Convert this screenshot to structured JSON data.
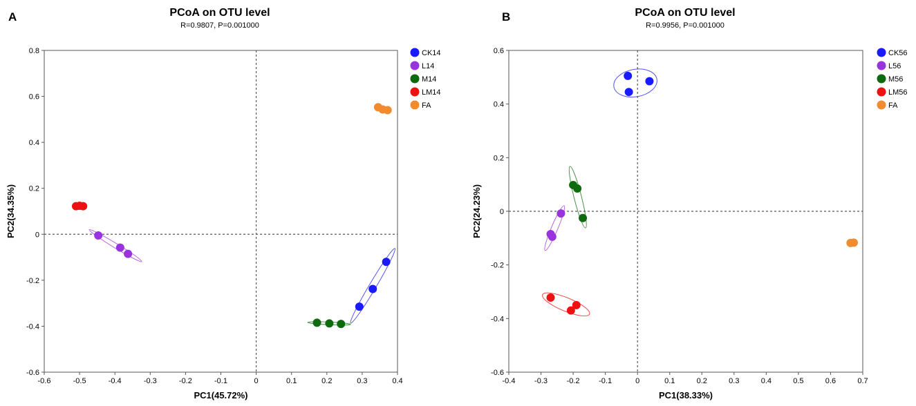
{
  "chart_data": [
    {
      "type": "scatter",
      "panel": "A",
      "title": "PCoA on OTU level",
      "subtitle": "R=0.9807, P=0.001000",
      "xlabel": "PC1(45.72%)",
      "ylabel": "PC2(34.35%)",
      "xlim": [
        -0.6,
        0.4
      ],
      "ylim": [
        -0.6,
        0.8
      ],
      "xticks": [
        -0.6,
        -0.5,
        -0.4,
        -0.3,
        -0.2,
        -0.1,
        0,
        0.1,
        0.2,
        0.3,
        0.4
      ],
      "yticks": [
        -0.6,
        -0.4,
        -0.2,
        0,
        0.2,
        0.4,
        0.6,
        0.8
      ],
      "xtick_labels": [
        "-0.6",
        "-0.5",
        "-0.4",
        "-0.3",
        "-0.2",
        "-0.1",
        "0",
        "0.1",
        "0.2",
        "0.3",
        "0.4"
      ],
      "ytick_labels": [
        "-0.6",
        "-0.4",
        "-0.2",
        "0",
        "0.2",
        "0.4",
        "0.6",
        "0.8"
      ],
      "legend_position": "right",
      "series": [
        {
          "name": "CK14",
          "color": "#1a1aff",
          "points": [
            [
              0.292,
              -0.315
            ],
            [
              0.33,
              -0.238
            ],
            [
              0.368,
              -0.12
            ]
          ],
          "ellipse": true
        },
        {
          "name": "L14",
          "color": "#9933dd",
          "points": [
            [
              -0.447,
              -0.005
            ],
            [
              -0.385,
              -0.058
            ],
            [
              -0.363,
              -0.085
            ]
          ],
          "ellipse": true
        },
        {
          "name": "M14",
          "color": "#0e6a0e",
          "points": [
            [
              0.172,
              -0.385
            ],
            [
              0.207,
              -0.388
            ],
            [
              0.24,
              -0.39
            ]
          ],
          "ellipse": true
        },
        {
          "name": "LM14",
          "color": "#ee1111",
          "points": [
            [
              -0.51,
              0.122
            ],
            [
              -0.5,
              0.124
            ],
            [
              -0.49,
              0.122
            ]
          ],
          "ellipse": false
        },
        {
          "name": "FA",
          "color": "#f28a2e",
          "points": [
            [
              0.345,
              0.553
            ],
            [
              0.358,
              0.543
            ],
            [
              0.372,
              0.54
            ]
          ],
          "ellipse": false
        }
      ]
    },
    {
      "type": "scatter",
      "panel": "B",
      "title": "PCoA on OTU level",
      "subtitle": "R=0.9956, P=0.001000",
      "xlabel": "PC1(38.33%)",
      "ylabel": "PC2(24.23%)",
      "xlim": [
        -0.4,
        0.7
      ],
      "ylim": [
        -0.6,
        0.6
      ],
      "xticks": [
        -0.4,
        -0.3,
        -0.2,
        -0.1,
        0,
        0.1,
        0.2,
        0.3,
        0.4,
        0.5,
        0.6,
        0.7
      ],
      "yticks": [
        -0.6,
        -0.4,
        -0.2,
        0,
        0.2,
        0.4,
        0.6
      ],
      "xtick_labels": [
        "-0.4",
        "-0.3",
        "-0.2",
        "-0.1",
        "0",
        "0.1",
        "0.2",
        "0.3",
        "0.4",
        "0.5",
        "0.6",
        "0.7"
      ],
      "ytick_labels": [
        "-0.6",
        "-0.4",
        "-0.2",
        "0",
        "0.2",
        "0.4",
        "0.6"
      ],
      "legend_position": "right",
      "series": [
        {
          "name": "CK56",
          "color": "#1a1aff",
          "points": [
            [
              -0.03,
              0.505
            ],
            [
              0.037,
              0.485
            ],
            [
              -0.027,
              0.445
            ]
          ],
          "ellipse": true
        },
        {
          "name": "L56",
          "color": "#9933dd",
          "points": [
            [
              -0.238,
              -0.008
            ],
            [
              -0.27,
              -0.085
            ],
            [
              -0.265,
              -0.095
            ]
          ],
          "ellipse": true
        },
        {
          "name": "M56",
          "color": "#0e6a0e",
          "points": [
            [
              -0.2,
              0.098
            ],
            [
              -0.187,
              0.085
            ],
            [
              -0.17,
              -0.025
            ]
          ],
          "ellipse": true
        },
        {
          "name": "LM56",
          "color": "#ee1111",
          "points": [
            [
              -0.27,
              -0.322
            ],
            [
              -0.19,
              -0.35
            ],
            [
              -0.207,
              -0.37
            ]
          ],
          "ellipse": true
        },
        {
          "name": "FA",
          "color": "#f28a2e",
          "points": [
            [
              0.662,
              -0.118
            ],
            [
              0.672,
              -0.117
            ]
          ],
          "ellipse": false
        }
      ]
    }
  ]
}
